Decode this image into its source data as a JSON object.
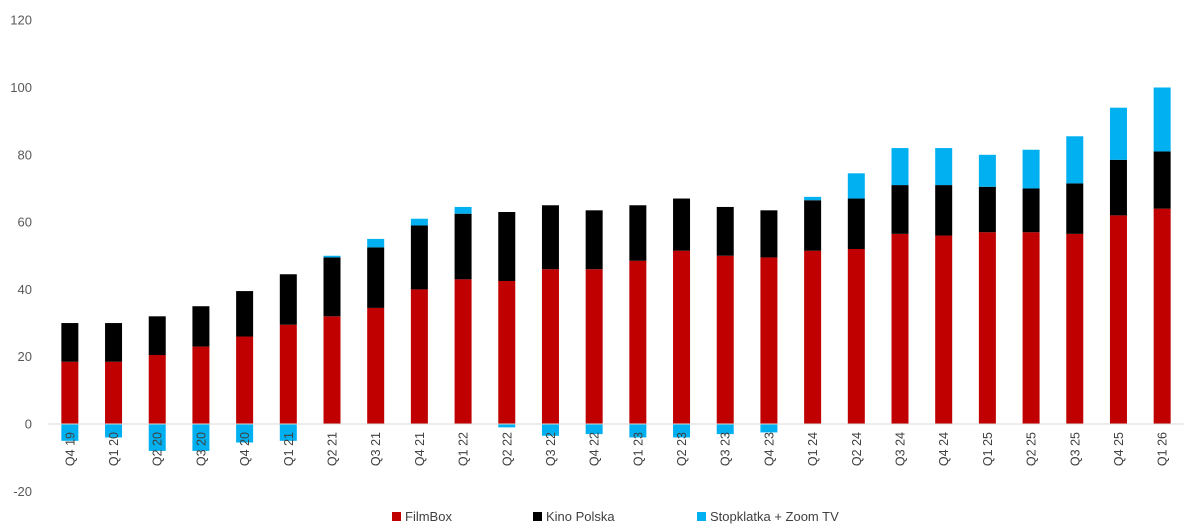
{
  "chart_data": {
    "type": "bar",
    "stacked": true,
    "categories": [
      "Q4 19",
      "Q1 20",
      "Q2 20",
      "Q3 20",
      "Q4 20",
      "Q1 21",
      "Q2 21",
      "Q3 21",
      "Q4 21",
      "Q1 22",
      "Q2 22",
      "Q3 22",
      "Q4 22",
      "Q1 23",
      "Q2 23",
      "Q3 23",
      "Q4 23",
      "Q1 24",
      "Q2 24",
      "Q3 24",
      "Q4 24",
      "Q1 25",
      "Q2 25",
      "Q3 25",
      "Q4 25",
      "Q1 26"
    ],
    "ylim": [
      -20,
      120
    ],
    "yticks": [
      -20,
      0,
      20,
      40,
      60,
      80,
      100,
      120
    ],
    "grid": false,
    "legend_position": "bottom",
    "series": [
      {
        "name": "FilmBox",
        "color": "#c00000",
        "values": [
          18.5,
          18.5,
          20.5,
          23,
          26,
          29.5,
          32,
          34.5,
          40,
          43,
          42.5,
          46,
          46,
          48.5,
          51.5,
          50,
          49.5,
          51.5,
          52,
          56.5,
          56,
          57,
          57,
          56.5,
          62,
          64
        ]
      },
      {
        "name": "Kino Polska",
        "color": "#000000",
        "values": [
          11.5,
          11.5,
          11.5,
          12,
          13.5,
          15,
          17.5,
          18,
          19,
          19.5,
          20.5,
          19,
          17.5,
          16.5,
          15.5,
          14.5,
          14,
          15,
          15,
          14.5,
          15,
          13.5,
          13,
          15,
          16.5,
          17
        ]
      },
      {
        "name": "Stopklatka + Zoom TV",
        "color": "#00b0f0",
        "values": [
          -5,
          -4,
          -8,
          -8,
          -5.5,
          -5,
          0.5,
          2.5,
          2,
          2,
          -1,
          -3.5,
          -3,
          -4,
          -4,
          -3,
          -2.5,
          1,
          7.5,
          11,
          11,
          9.5,
          11.5,
          14,
          15.5,
          19
        ]
      }
    ]
  }
}
